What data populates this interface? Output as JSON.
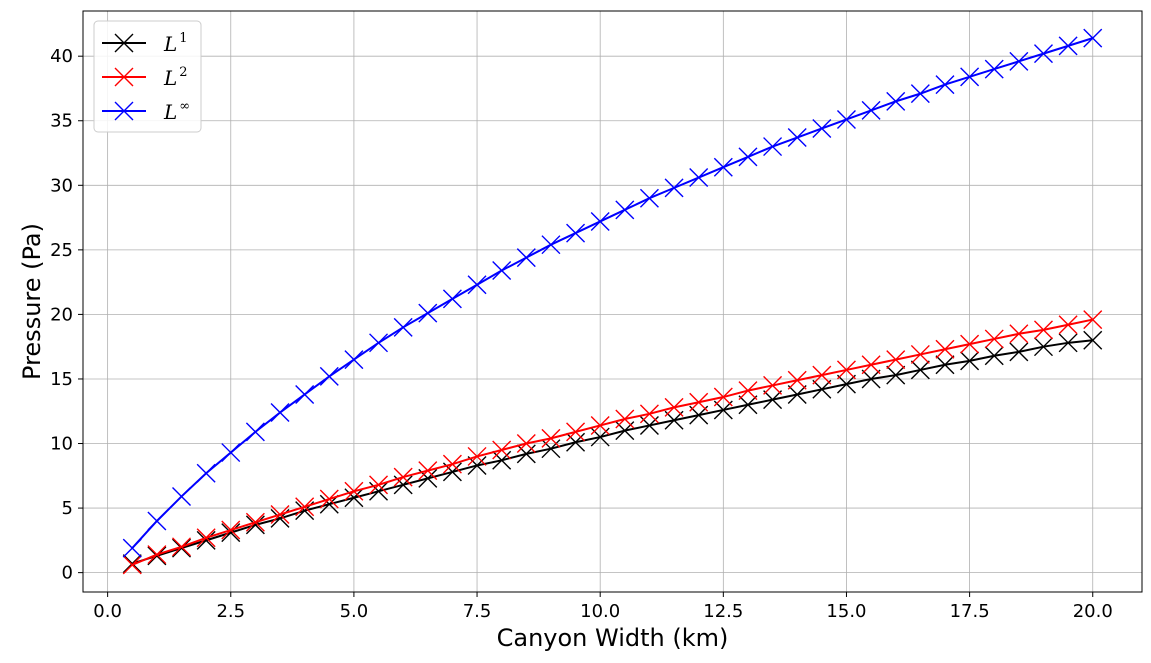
{
  "chart_data": {
    "type": "line",
    "title": "",
    "xlabel": "Canyon Width (km)",
    "ylabel": "Pressure (Pa)",
    "xlim": [
      -0.5,
      21.0
    ],
    "ylim": [
      -1.5,
      43.5
    ],
    "x_ticks": [
      "0.0",
      "2.5",
      "5.0",
      "7.5",
      "10.0",
      "12.5",
      "15.0",
      "17.5",
      "20.0"
    ],
    "y_ticks": [
      "0",
      "5",
      "10",
      "15",
      "20",
      "25",
      "30",
      "35",
      "40"
    ],
    "grid": true,
    "legend_position": "top-left",
    "marker": "x",
    "x": [
      0.5,
      1.0,
      1.5,
      2.0,
      2.5,
      3.0,
      3.5,
      4.0,
      4.5,
      5.0,
      5.5,
      6.0,
      6.5,
      7.0,
      7.5,
      8.0,
      8.5,
      9.0,
      9.5,
      10.0,
      10.5,
      11.0,
      11.5,
      12.0,
      12.5,
      13.0,
      13.5,
      14.0,
      14.5,
      15.0,
      15.5,
      16.0,
      16.5,
      17.0,
      17.5,
      18.0,
      18.5,
      19.0,
      19.5,
      20.0
    ],
    "series": [
      {
        "name": "L",
        "superscript": "1",
        "color": "#000000",
        "values": [
          0.7,
          1.3,
          1.9,
          2.5,
          3.1,
          3.7,
          4.2,
          4.8,
          5.3,
          5.8,
          6.3,
          6.8,
          7.3,
          7.8,
          8.3,
          8.7,
          9.2,
          9.6,
          10.1,
          10.5,
          11.0,
          11.4,
          11.8,
          12.2,
          12.6,
          13.0,
          13.4,
          13.8,
          14.2,
          14.6,
          15.0,
          15.3,
          15.7,
          16.1,
          16.4,
          16.8,
          17.1,
          17.5,
          17.8,
          18.0
        ]
      },
      {
        "name": "L",
        "superscript": "2",
        "color": "#ff0000",
        "values": [
          0.6,
          1.4,
          2.0,
          2.7,
          3.3,
          3.9,
          4.5,
          5.1,
          5.7,
          6.3,
          6.8,
          7.4,
          7.9,
          8.4,
          9.0,
          9.5,
          10.0,
          10.4,
          10.9,
          11.4,
          11.9,
          12.3,
          12.8,
          13.2,
          13.6,
          14.1,
          14.5,
          14.9,
          15.3,
          15.7,
          16.1,
          16.5,
          16.9,
          17.3,
          17.7,
          18.1,
          18.5,
          18.8,
          19.2,
          19.6
        ]
      },
      {
        "name": "L",
        "superscript": "∞",
        "color": "#0000ff",
        "values": [
          1.9,
          4.0,
          5.9,
          7.7,
          9.3,
          10.9,
          12.4,
          13.8,
          15.2,
          16.5,
          17.8,
          19.0,
          20.1,
          21.2,
          22.3,
          23.4,
          24.4,
          25.4,
          26.3,
          27.2,
          28.1,
          29.0,
          29.8,
          30.6,
          31.4,
          32.2,
          33.0,
          33.7,
          34.4,
          35.1,
          35.8,
          36.5,
          37.1,
          37.8,
          38.4,
          39.0,
          39.6,
          40.2,
          40.8,
          41.4
        ]
      }
    ]
  }
}
